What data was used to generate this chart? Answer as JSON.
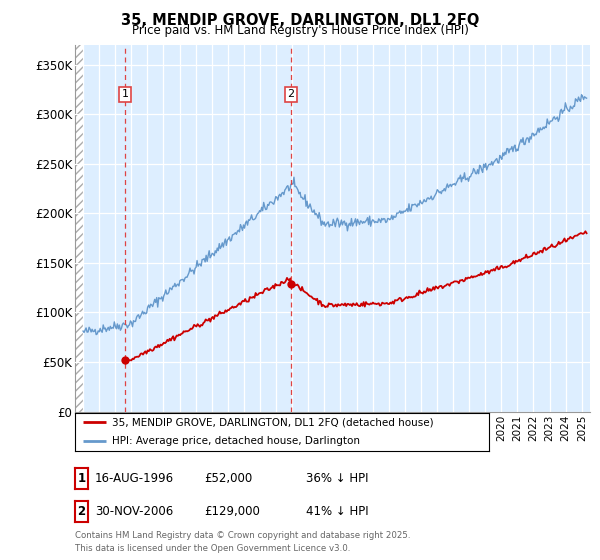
{
  "title": "35, MENDIP GROVE, DARLINGTON, DL1 2FQ",
  "subtitle": "Price paid vs. HM Land Registry's House Price Index (HPI)",
  "ylabel_ticks": [
    "£0",
    "£50K",
    "£100K",
    "£150K",
    "£200K",
    "£250K",
    "£300K",
    "£350K"
  ],
  "ytick_values": [
    0,
    50000,
    100000,
    150000,
    200000,
    250000,
    300000,
    350000
  ],
  "ylim": [
    0,
    370000
  ],
  "xlim_start": 1993.5,
  "xlim_end": 2025.5,
  "purchase1_year": 1996.62,
  "purchase1_price": 52000,
  "purchase1_label": "1",
  "purchase2_year": 2006.92,
  "purchase2_price": 129000,
  "purchase2_label": "2",
  "legend_property": "35, MENDIP GROVE, DARLINGTON, DL1 2FQ (detached house)",
  "legend_hpi": "HPI: Average price, detached house, Darlington",
  "table_row1": [
    "1",
    "16-AUG-1996",
    "£52,000",
    "36% ↓ HPI"
  ],
  "table_row2": [
    "2",
    "30-NOV-2006",
    "£129,000",
    "41% ↓ HPI"
  ],
  "footnote": "Contains HM Land Registry data © Crown copyright and database right 2025.\nThis data is licensed under the Open Government Licence v3.0.",
  "property_line_color": "#cc0000",
  "hpi_line_color": "#6699cc",
  "vline_color": "#dd4444",
  "background_color": "#ffffff",
  "grid_color": "#cccccc",
  "shading_color": "#ddeeff"
}
